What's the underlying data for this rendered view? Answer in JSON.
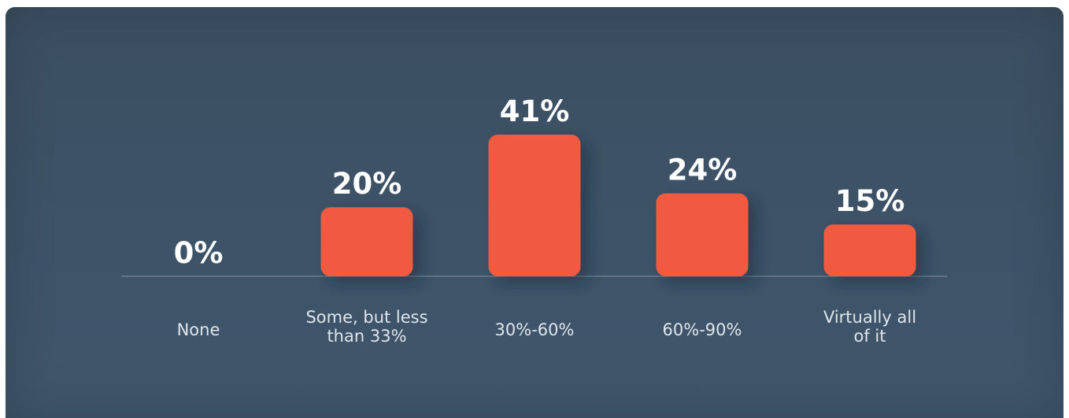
{
  "chart_data": {
    "type": "bar",
    "categories": [
      [
        "None"
      ],
      [
        "Some, but less",
        "than 33%"
      ],
      [
        "30%-60%"
      ],
      [
        "60%-90%"
      ],
      [
        "Virtually all",
        "of it"
      ]
    ],
    "values": [
      0,
      20,
      41,
      24,
      15
    ],
    "value_labels": [
      "0%",
      "20%",
      "41%",
      "24%",
      "15%"
    ],
    "title": "",
    "xlabel": "",
    "ylabel": "",
    "ylim": [
      0,
      41
    ],
    "grid": false,
    "legend": "none"
  },
  "colors": {
    "background": "#3d5266",
    "bar": "#f05a40",
    "baseline": "#6d7e8f",
    "value_text": "#ffffff",
    "category_text": "#dfe5ea"
  }
}
